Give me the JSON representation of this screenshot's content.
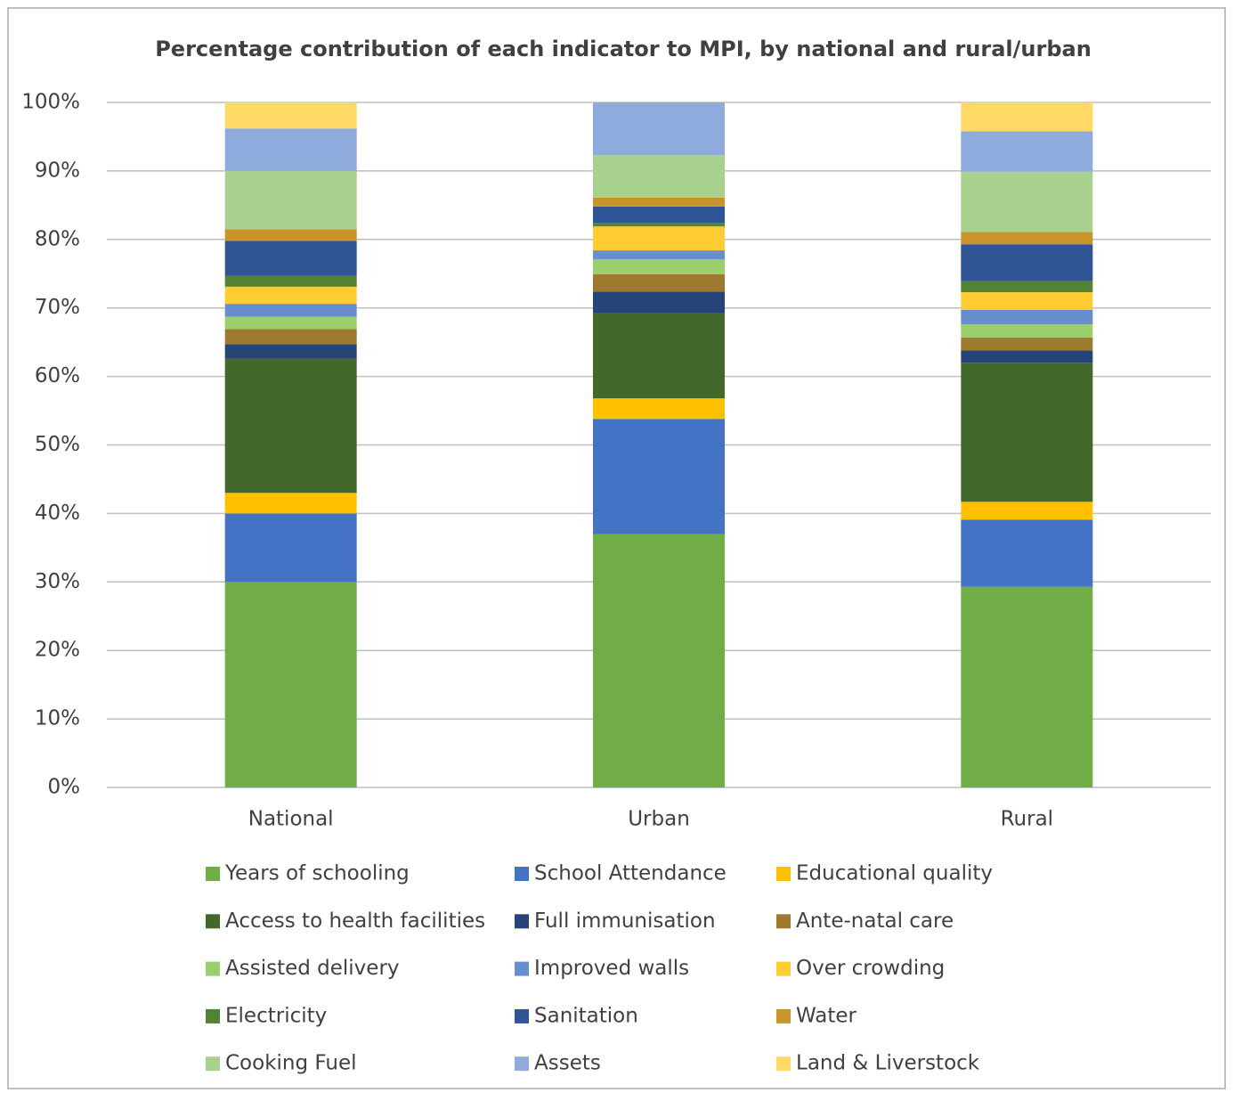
{
  "chart_data": {
    "type": "stacked_bar",
    "title": "Percentage contribution of each indicator to MPI, by national and rural/urban",
    "categories": [
      "National",
      "Urban",
      "Rural"
    ],
    "ylim": [
      0,
      100
    ],
    "yticks": [
      {
        "value": 0,
        "label": "0%"
      },
      {
        "value": 10,
        "label": "10%"
      },
      {
        "value": 20,
        "label": "20%"
      },
      {
        "value": 30,
        "label": "30%"
      },
      {
        "value": 40,
        "label": "40%"
      },
      {
        "value": 50,
        "label": "50%"
      },
      {
        "value": 60,
        "label": "60%"
      },
      {
        "value": 70,
        "label": "70%"
      },
      {
        "value": 80,
        "label": "80%"
      },
      {
        "value": 90,
        "label": "90%"
      },
      {
        "value": 100,
        "label": "100%"
      }
    ],
    "grid": true,
    "legend": "bottom",
    "series": [
      {
        "name": "Years of schooling",
        "color": "#70ad47",
        "values": [
          30,
          37,
          29.3
        ]
      },
      {
        "name": "School Attendance",
        "color": "#4472c4",
        "values": [
          10,
          16.8,
          9.8
        ]
      },
      {
        "name": "Educational quality",
        "color": "#ffc000",
        "values": [
          3,
          3,
          2.6
        ]
      },
      {
        "name": "Access to health facilities",
        "color": "#43682b",
        "values": [
          19.6,
          12.4,
          20.3
        ]
      },
      {
        "name": "Full immunisation",
        "color": "#264478",
        "values": [
          2.1,
          3.2,
          1.8
        ]
      },
      {
        "name": "Ante-natal care",
        "color": "#9e7a2e",
        "values": [
          2.2,
          2.5,
          1.9
        ]
      },
      {
        "name": "Assisted delivery",
        "color": "#9bce6d",
        "values": [
          1.8,
          2.2,
          1.9
        ]
      },
      {
        "name": "Improved walls",
        "color": "#698ed0",
        "values": [
          1.9,
          1.3,
          2.1
        ]
      },
      {
        "name": "Over crowding",
        "color": "#ffcd33",
        "values": [
          2.5,
          3.5,
          2.6
        ]
      },
      {
        "name": "Electricity",
        "color": "#548235",
        "values": [
          1.6,
          0.5,
          1.6
        ]
      },
      {
        "name": "Sanitation",
        "color": "#2f5597",
        "values": [
          5.1,
          2.4,
          5.4
        ]
      },
      {
        "name": "Water",
        "color": "#c9952a",
        "values": [
          1.7,
          1.3,
          1.8
        ]
      },
      {
        "name": "Cooking Fuel",
        "color": "#a9d18e",
        "values": [
          8.5,
          6.2,
          8.8
        ]
      },
      {
        "name": "Assets",
        "color": "#8faadc",
        "values": [
          6.2,
          7.7,
          5.9
        ]
      },
      {
        "name": "Land & Liverstock",
        "color": "#ffd966",
        "values": [
          3.8,
          0,
          4.2
        ]
      }
    ]
  }
}
